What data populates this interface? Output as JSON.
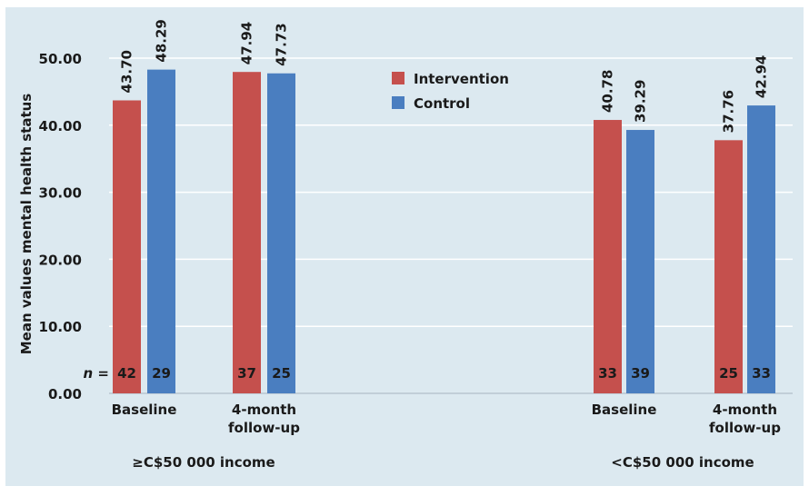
{
  "chart_data": {
    "type": "bar",
    "ylabel": "Mean values mental health status",
    "ylim": [
      0,
      50
    ],
    "yticks": [
      "0.00",
      "10.00",
      "20.00",
      "30.00",
      "40.00",
      "50.00"
    ],
    "grid": true,
    "legend_position": "top-center",
    "n_prefix": "n",
    "n_suffix": "=",
    "groups": [
      {
        "label": "≥C$50 000 income",
        "categories": [
          "Baseline",
          "4-month\nfollow-up"
        ],
        "series": [
          {
            "name": "Intervention",
            "values": [
              43.7,
              47.94
            ],
            "value_labels": [
              "43.70",
              "47.94"
            ],
            "n": [
              "42",
              "37"
            ]
          },
          {
            "name": "Control",
            "values": [
              48.29,
              47.73
            ],
            "value_labels": [
              "48.29",
              "47.73"
            ],
            "n": [
              "29",
              "25"
            ]
          }
        ]
      },
      {
        "label": "<C$50 000 income",
        "categories": [
          "Baseline",
          "4-month\nfollow-up"
        ],
        "series": [
          {
            "name": "Intervention",
            "values": [
              40.78,
              37.76
            ],
            "value_labels": [
              "40.78",
              "37.76"
            ],
            "n": [
              "33",
              "25"
            ]
          },
          {
            "name": "Control",
            "values": [
              39.29,
              42.94
            ],
            "value_labels": [
              "39.29",
              "42.94"
            ],
            "n": [
              "39",
              "33"
            ]
          }
        ]
      }
    ],
    "legend": [
      {
        "name": "Intervention",
        "color": "#c5504d"
      },
      {
        "name": "Control",
        "color": "#4a7ec0"
      }
    ]
  },
  "colors": {
    "background": "#dce9f0",
    "grid": "#ffffff",
    "axis": "#b8c6cf",
    "intervention": "#c5504d",
    "control": "#4a7ec0"
  }
}
